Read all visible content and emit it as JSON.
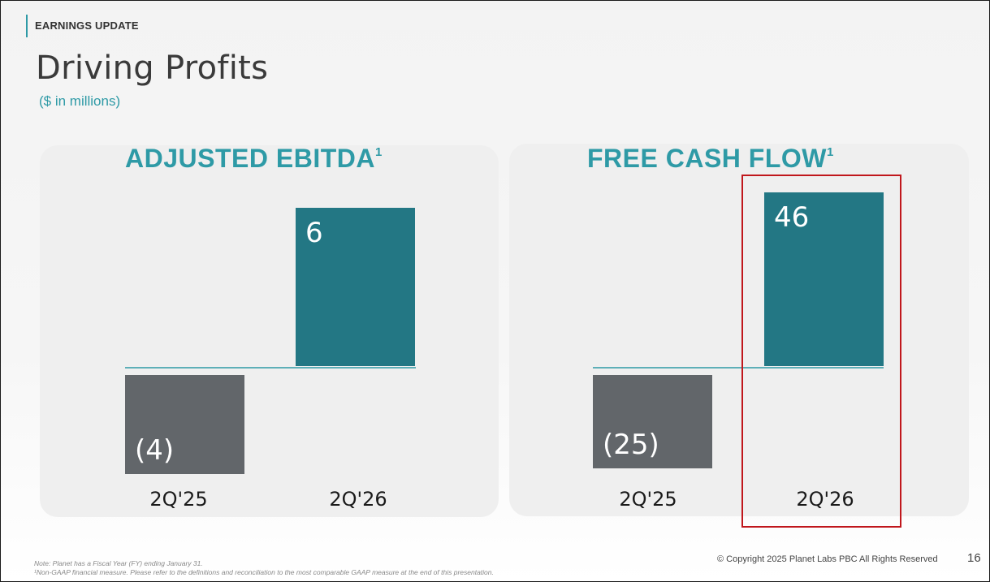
{
  "header": {
    "section_tag": "EARNINGS UPDATE",
    "title": "Driving Profits",
    "subtitle": "($ in millions)"
  },
  "chart_data": [
    {
      "type": "bar",
      "title": "ADJUSTED EBITDA",
      "title_superscript": "1",
      "categories": [
        "2Q'25",
        "2Q'26"
      ],
      "values": [
        -4,
        6
      ],
      "data_labels": [
        "(4)",
        "6"
      ],
      "colors": [
        "#62666a",
        "#237784"
      ],
      "baseline_color": "#2e9aa6",
      "grid": false
    },
    {
      "type": "bar",
      "title": "FREE CASH FLOW",
      "title_superscript": "1",
      "categories": [
        "2Q'25",
        "2Q'26"
      ],
      "values": [
        -25,
        46
      ],
      "data_labels": [
        "(25)",
        "46"
      ],
      "colors": [
        "#62666a",
        "#237784"
      ],
      "baseline_color": "#2e9aa6",
      "grid": false,
      "highlighted_category": "2Q'26",
      "highlight_color": "#c0171c"
    }
  ],
  "footer": {
    "note_line1": "Note: Planet has a Fiscal Year (FY) ending January 31.",
    "note_line2": "¹Non-GAAP financial measure. Please refer to the definitions and reconciliation to the most comparable GAAP measure at the end of this presentation.",
    "copyright": "© Copyright 2025 Planet Labs PBC  All Rights Reserved",
    "page_number": "16"
  }
}
